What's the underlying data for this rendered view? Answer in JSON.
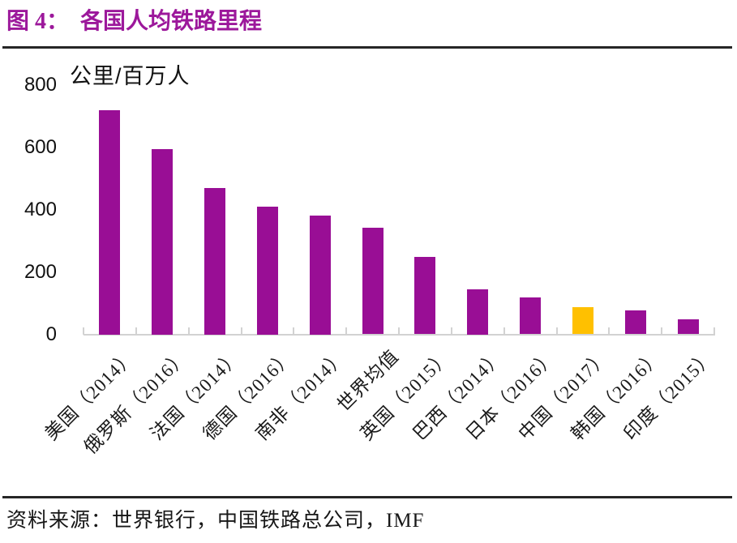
{
  "figure": {
    "title_prefix": "图 4：",
    "title_text": "各国人均铁路里程",
    "title_color": "#9C189B",
    "source_text": "资料来源：世界银行，中国铁路总公司，IMF"
  },
  "chart_data": {
    "type": "bar",
    "title": "各国人均铁路里程",
    "unit_label": "公里/百万人",
    "ylabel": "公里/百万人",
    "xlabel": "",
    "categories": [
      "美国（2014）",
      "俄罗斯（2016）",
      "法国（2014）",
      "德国（2016）",
      "南非（2014）",
      "世界均值",
      "英国（2015）",
      "巴西（2014）",
      "日本（2016）",
      "中国（2017）",
      "韩国（2016）",
      "印度（2015）"
    ],
    "values": [
      720,
      595,
      470,
      410,
      380,
      342,
      248,
      145,
      118,
      88,
      78,
      49
    ],
    "highlight_index": 9,
    "highlight_category": "中国（2017）",
    "bar_color": "#990E95",
    "highlight_color": "#FFC000",
    "ylim": [
      0,
      800
    ],
    "yticks": [
      0,
      200,
      400,
      600,
      800
    ],
    "grid": false,
    "legend": false,
    "axis_line_color": "#d2d2d2"
  }
}
